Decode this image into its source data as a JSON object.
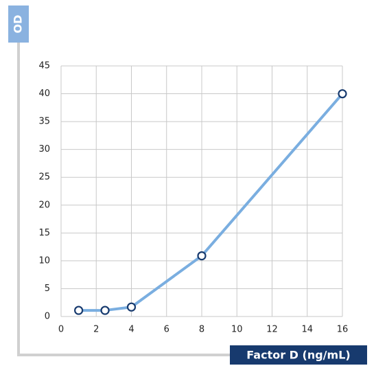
{
  "chart_data": {
    "type": "line",
    "x_label": "Factor D (ng/mL)",
    "y_label": "OD",
    "x": [
      1,
      2.5,
      4,
      8,
      16
    ],
    "series": [
      {
        "color": "#7aaee0",
        "marker_stroke": "#173a6e",
        "values": [
          1.1,
          1.1,
          1.7,
          10.9,
          40
        ]
      }
    ],
    "xlim": [
      0,
      16
    ],
    "xticks": [
      0,
      2,
      4,
      6,
      8,
      10,
      12,
      14,
      16
    ],
    "ylim": [
      0,
      45
    ],
    "yticks": [
      0,
      5,
      10,
      15,
      20,
      25,
      30,
      35,
      40,
      45
    ],
    "grid": true
  }
}
